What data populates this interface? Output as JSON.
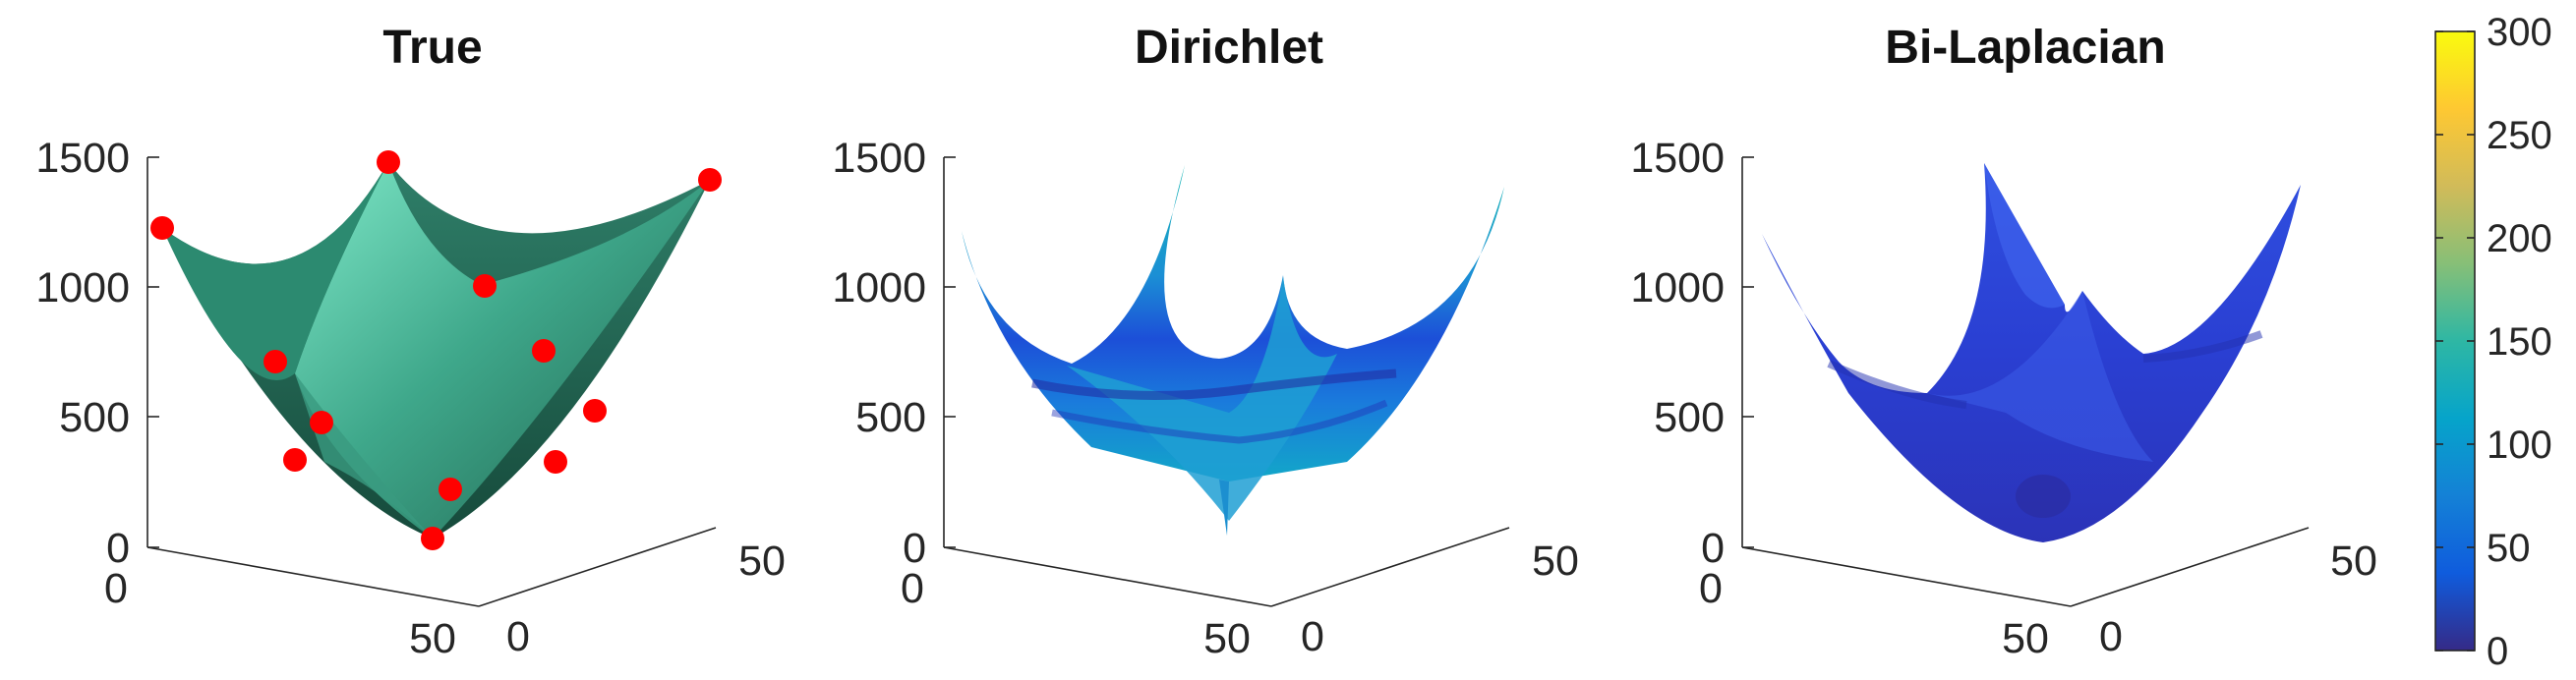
{
  "chart_data": [
    {
      "type": "surface",
      "title": "True",
      "surface_color": "#3da58a",
      "marker_color": "#ff0000",
      "zticks": [
        "0",
        "500",
        "1000",
        "1500"
      ],
      "xticks": [
        "0",
        "50"
      ],
      "yticks": [
        "0",
        "50"
      ],
      "zlim": [
        0,
        1500
      ],
      "xlim": [
        0,
        50
      ],
      "ylim": [
        0,
        50
      ],
      "corner_heights": [
        1250,
        1500,
        1450,
        1200
      ],
      "min_height": 50
    },
    {
      "type": "surface",
      "title": "Dirichlet",
      "colormap": "parula",
      "zticks": [
        "0",
        "500",
        "1000",
        "1500"
      ],
      "xticks": [
        "0",
        "50"
      ],
      "yticks": [
        "0",
        "50"
      ],
      "zlim": [
        0,
        1500
      ],
      "xlim": [
        0,
        50
      ],
      "ylim": [
        0,
        50
      ]
    },
    {
      "type": "surface",
      "title": "Bi-Laplacian",
      "colormap": "parula",
      "zticks": [
        "0",
        "500",
        "1000",
        "1500"
      ],
      "xticks": [
        "0",
        "50"
      ],
      "yticks": [
        "0",
        "50"
      ],
      "zlim": [
        0,
        1500
      ],
      "xlim": [
        0,
        50
      ],
      "ylim": [
        0,
        50
      ]
    }
  ],
  "colorbar": {
    "ticks": [
      "0",
      "50",
      "100",
      "150",
      "200",
      "250",
      "300"
    ],
    "range": [
      0,
      300
    ],
    "colors": [
      "#352a87",
      "#0f5cdd",
      "#1481d6",
      "#06a4ca",
      "#2eb7a4",
      "#87bf77",
      "#d1bb59",
      "#fec832",
      "#f9fb0e"
    ]
  }
}
